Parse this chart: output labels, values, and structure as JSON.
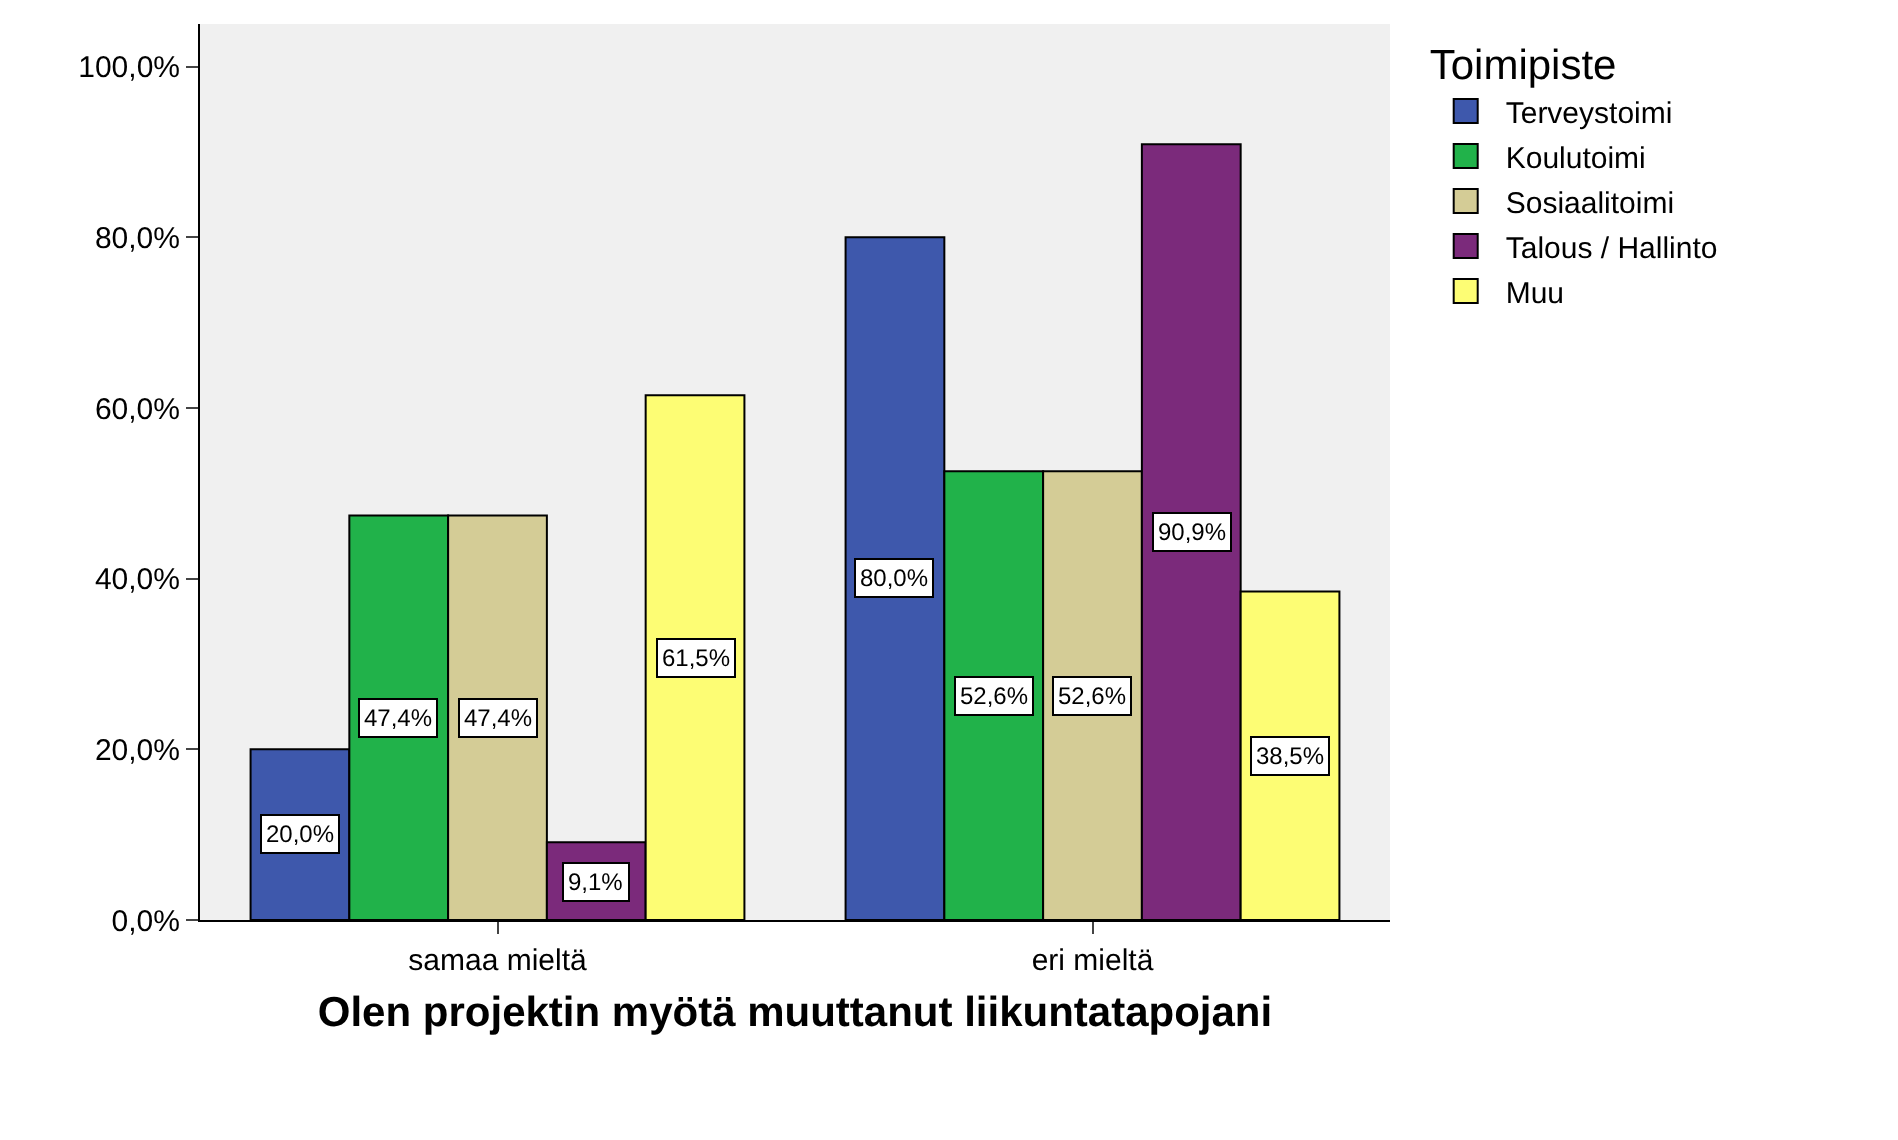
{
  "chart_data": {
    "type": "bar",
    "xlabel": "Olen projektin myötä muuttanut liikuntatapojani",
    "legend_title": "Toimipiste",
    "categories": [
      "samaa mieltä",
      "eri mieltä"
    ],
    "series": [
      {
        "name": "Terveystoimi",
        "color": "#3e58ac",
        "values": [
          20.0,
          80.0
        ],
        "value_labels": [
          "20,0%",
          "80,0%"
        ]
      },
      {
        "name": "Koulutoimi",
        "color": "#21b24a",
        "values": [
          47.4,
          52.6
        ],
        "value_labels": [
          "47,4%",
          "52,6%"
        ]
      },
      {
        "name": "Sosiaalitoimi",
        "color": "#d4cc96",
        "values": [
          47.4,
          52.6
        ],
        "value_labels": [
          "47,4%",
          "52,6%"
        ]
      },
      {
        "name": "Talous / Hallinto",
        "color": "#7b2a7b",
        "values": [
          9.1,
          90.9
        ],
        "value_labels": [
          "9,1%",
          "90,9%"
        ]
      },
      {
        "name": "Muu",
        "color": "#fdfd74",
        "values": [
          61.5,
          38.5
        ],
        "value_labels": [
          "61,5%",
          "38,5%"
        ]
      }
    ],
    "ylim": [
      0,
      105
    ],
    "yticks": [
      {
        "value": 0,
        "label": "0,0%"
      },
      {
        "value": 20,
        "label": "20,0%"
      },
      {
        "value": 40,
        "label": "40,0%"
      },
      {
        "value": 60,
        "label": "60,0%"
      },
      {
        "value": 80,
        "label": "80,0%"
      },
      {
        "value": 100,
        "label": "100,0%"
      }
    ],
    "grid": false,
    "legend": "top right"
  }
}
